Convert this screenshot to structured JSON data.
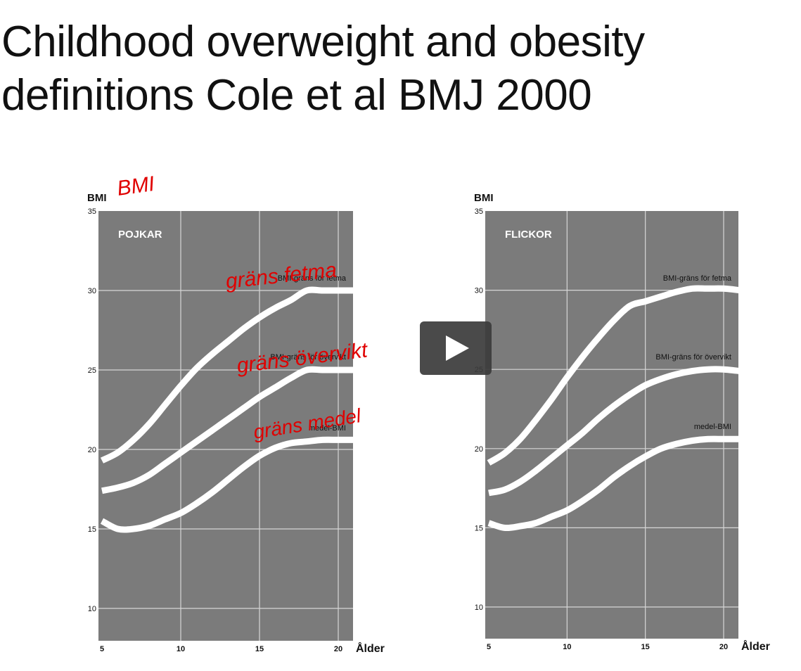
{
  "slide": {
    "title_line1": "Childhood overweight and obesity",
    "title_line2": "definitions Cole et al BMJ 2000"
  },
  "colors": {
    "plot_bg": "#7b7b7b",
    "curve": "#ffffff",
    "grid": "#d6d6d6",
    "annotation": "#e00000",
    "play_bg": "#3b3b3b"
  },
  "player": {
    "icon": "play-icon"
  },
  "chart_data": [
    {
      "type": "line",
      "panel_label": "POJKAR",
      "ylabel": "BMI",
      "xlabel": "Ålder",
      "xlim": [
        5,
        21
      ],
      "ylim": [
        8,
        35
      ],
      "xticks": [
        5,
        10,
        15,
        20
      ],
      "yticks": [
        10,
        15,
        20,
        25,
        30,
        35
      ],
      "grid": true,
      "series": [
        {
          "name": "BMI-gräns för fetma",
          "x": [
            5,
            6,
            7,
            8,
            9,
            10,
            11,
            12,
            13,
            14,
            15,
            16,
            17,
            18,
            19,
            20,
            21
          ],
          "values": [
            19.3,
            19.8,
            20.6,
            21.6,
            22.8,
            24.0,
            25.1,
            26.0,
            26.8,
            27.6,
            28.3,
            28.9,
            29.4,
            30.0,
            30.0,
            30.0,
            30.0
          ]
        },
        {
          "name": "BMI-gräns för övervikt",
          "x": [
            5,
            6,
            7,
            8,
            9,
            10,
            11,
            12,
            13,
            14,
            15,
            16,
            17,
            18,
            19,
            20,
            21
          ],
          "values": [
            17.4,
            17.6,
            17.9,
            18.4,
            19.1,
            19.8,
            20.5,
            21.2,
            21.9,
            22.6,
            23.3,
            23.9,
            24.5,
            25.0,
            25.0,
            25.0,
            25.0
          ]
        },
        {
          "name": "medel-BMI",
          "x": [
            5,
            6,
            7,
            8,
            9,
            10,
            11,
            12,
            13,
            14,
            15,
            16,
            17,
            18,
            19,
            20,
            21
          ],
          "values": [
            15.5,
            15.0,
            15.0,
            15.2,
            15.6,
            16.0,
            16.6,
            17.3,
            18.1,
            18.9,
            19.6,
            20.1,
            20.4,
            20.5,
            20.6,
            20.6,
            20.6
          ]
        }
      ],
      "annotations": [
        "BMI",
        "gräns fetma",
        "gräns övervikt",
        "gräns medel"
      ]
    },
    {
      "type": "line",
      "panel_label": "FLICKOR",
      "ylabel": "BMI",
      "xlabel": "Ålder",
      "xlim": [
        5,
        21
      ],
      "ylim": [
        8,
        35
      ],
      "xticks": [
        5,
        10,
        15,
        20
      ],
      "yticks": [
        10,
        15,
        20,
        25,
        30,
        35
      ],
      "grid": true,
      "series": [
        {
          "name": "BMI-gräns för fetma",
          "x": [
            5,
            6,
            7,
            8,
            9,
            10,
            11,
            12,
            13,
            14,
            15,
            16,
            17,
            18,
            19,
            20,
            21
          ],
          "values": [
            19.1,
            19.7,
            20.6,
            21.8,
            23.1,
            24.5,
            25.8,
            27.0,
            28.1,
            29.0,
            29.3,
            29.6,
            29.9,
            30.1,
            30.1,
            30.1,
            30.0
          ]
        },
        {
          "name": "BMI-gräns för övervikt",
          "x": [
            5,
            6,
            7,
            8,
            9,
            10,
            11,
            12,
            13,
            14,
            15,
            16,
            17,
            18,
            19,
            20,
            21
          ],
          "values": [
            17.2,
            17.4,
            17.9,
            18.6,
            19.4,
            20.2,
            21.0,
            21.9,
            22.7,
            23.4,
            24.0,
            24.4,
            24.7,
            24.9,
            25.0,
            25.0,
            24.9
          ]
        },
        {
          "name": "medel-BMI",
          "x": [
            5,
            6,
            7,
            8,
            9,
            10,
            11,
            12,
            13,
            14,
            15,
            16,
            17,
            18,
            19,
            20,
            21
          ],
          "values": [
            15.3,
            15.0,
            15.1,
            15.3,
            15.7,
            16.1,
            16.7,
            17.4,
            18.2,
            18.9,
            19.5,
            20.0,
            20.3,
            20.5,
            20.6,
            20.6,
            20.6
          ]
        }
      ]
    }
  ]
}
